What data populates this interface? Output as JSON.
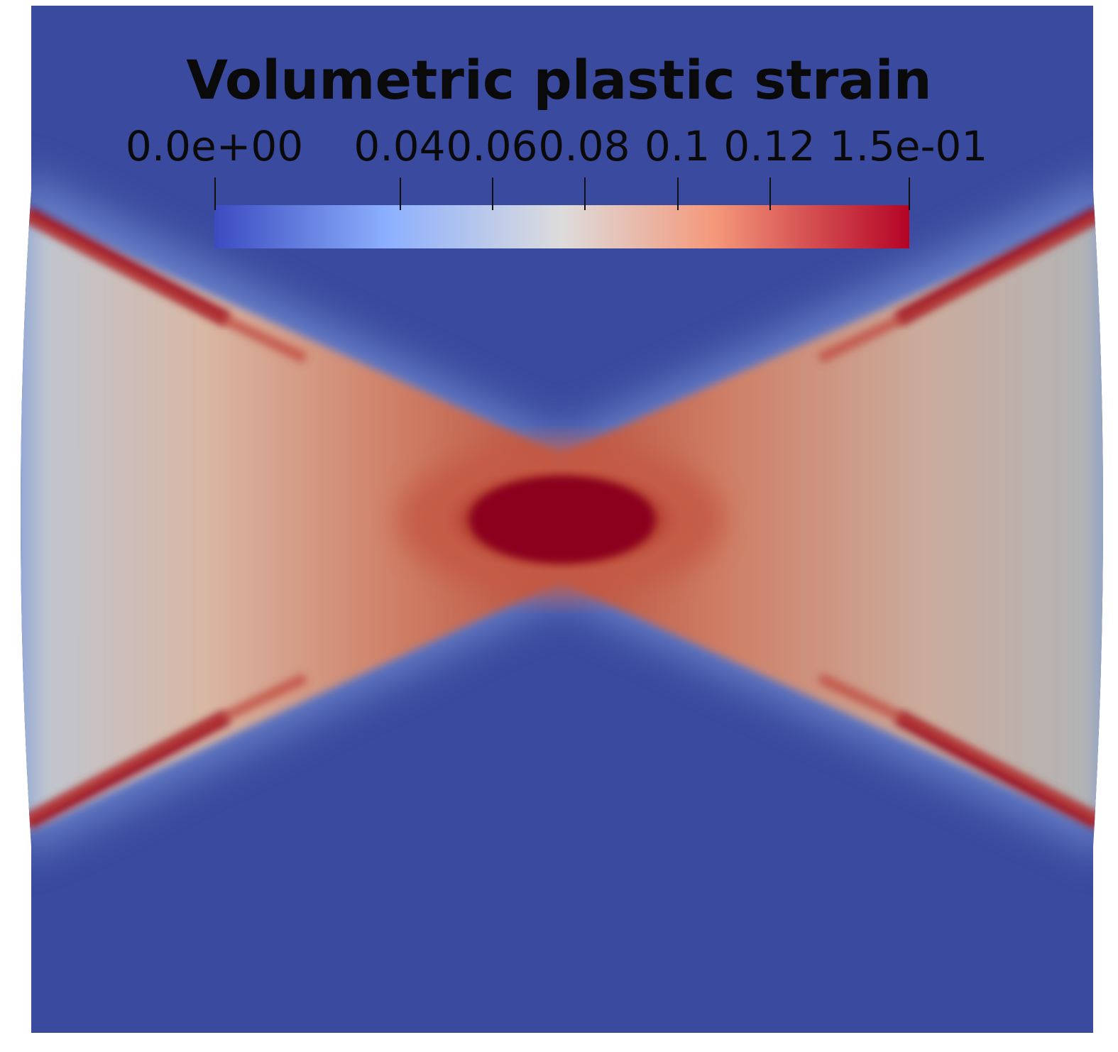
{
  "legend": {
    "title": "Volumetric plastic strain",
    "ticks": [
      {
        "label": "0.0e+00",
        "value": 0.0
      },
      {
        "label": "0.04",
        "value": 0.04
      },
      {
        "label": "0.06",
        "value": 0.06
      },
      {
        "label": "0.08",
        "value": 0.08
      },
      {
        "label": "0.1",
        "value": 0.1
      },
      {
        "label": "0.12",
        "value": 0.12
      },
      {
        "label": "1.5e-01",
        "value": 0.15
      }
    ],
    "range": [
      0.0,
      0.15
    ],
    "colormap": [
      "#3b4cc0",
      "#8db0fe",
      "#dddcdc",
      "#f4987a",
      "#b40426"
    ]
  },
  "colors": {
    "background_field": "#3a4c9d",
    "low": "#3b4cc0",
    "high": "#8b0020",
    "mid": "#c7b8ac"
  }
}
